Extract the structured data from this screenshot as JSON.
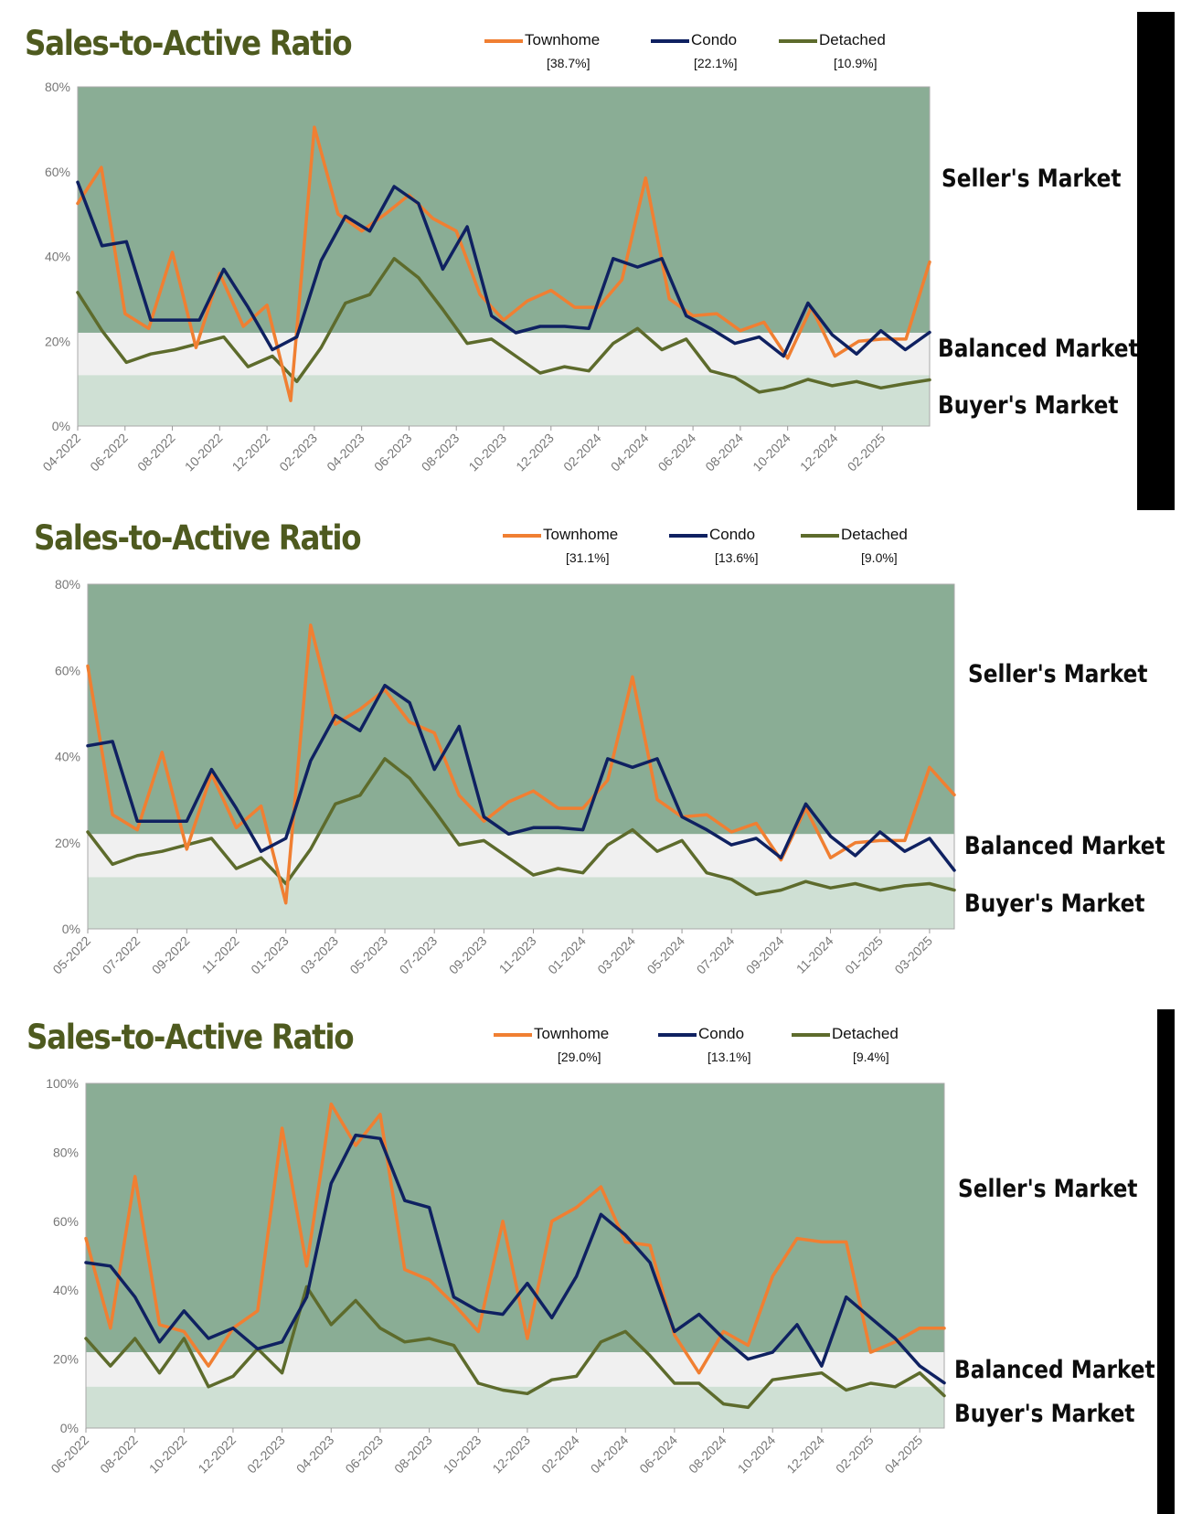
{
  "colors": {
    "townhome": "#f07f32",
    "condo": "#0f2161",
    "detached": "#5d6b2c",
    "sellers_zone": "#8aad95",
    "balanced_zone": "#f0f0f0",
    "buyers_zone": "#cfe0d4",
    "title": "#4e5a1f"
  },
  "zones": {
    "sellers": "Seller's Market",
    "balanced": "Balanced Market",
    "buyers": "Buyer's Market"
  },
  "legend_names": {
    "townhome": "Townhome",
    "condo": "Condo",
    "detached": "Detached"
  },
  "chart_data": [
    {
      "type": "line",
      "title": "Sales-to-Active Ratio",
      "ylim": [
        0,
        80
      ],
      "yticks": [
        "0%",
        "20%",
        "40%",
        "60%",
        "80%"
      ],
      "ytick_values": [
        0,
        20,
        40,
        60,
        80
      ],
      "zone_bounds": [
        12,
        22
      ],
      "xtick_labels": [
        "04-2022",
        "06-2022",
        "08-2022",
        "10-2022",
        "12-2022",
        "02-2023",
        "04-2023",
        "06-2023",
        "08-2023",
        "10-2023",
        "12-2023",
        "02-2024",
        "04-2024",
        "06-2024",
        "08-2024",
        "10-2024",
        "12-2024",
        "02-2025"
      ],
      "legend_values": [
        "[38.7%]",
        "[22.1%]",
        "[10.9%]"
      ],
      "series": [
        {
          "name": "Townhome",
          "key": "townhome",
          "values": [
            52.5,
            61,
            26.5,
            23,
            41,
            18.5,
            36,
            23.5,
            28.5,
            6,
            70.5,
            50,
            46,
            50,
            54.5,
            49,
            46,
            31,
            25,
            29.5,
            32,
            28,
            28,
            34.5,
            58.5,
            30,
            26,
            26.5,
            22.5,
            24.5,
            16,
            28,
            16.5,
            20,
            20.5,
            20.5,
            38.7
          ]
        },
        {
          "name": "Condo",
          "key": "condo",
          "values": [
            57.5,
            42.5,
            43.5,
            25,
            25,
            25,
            37,
            28,
            18,
            21,
            39,
            49.5,
            46,
            56.5,
            52.5,
            37,
            47,
            26,
            22,
            23.5,
            23.5,
            23,
            39.5,
            37.5,
            39.5,
            26,
            23,
            19.5,
            21,
            16.5,
            29,
            21.5,
            17,
            22.5,
            18,
            22.1
          ]
        },
        {
          "name": "Detached",
          "key": "detached",
          "values": [
            31.5,
            22.5,
            15,
            17,
            18,
            19.5,
            21,
            14,
            16.5,
            10.5,
            18.5,
            29,
            31,
            39.5,
            35,
            27.5,
            19.5,
            20.5,
            16.5,
            12.5,
            14,
            13,
            19.5,
            23,
            18,
            20.5,
            13,
            11.5,
            8,
            9,
            11,
            9.5,
            10.5,
            9,
            10,
            10.9
          ]
        }
      ]
    },
    {
      "type": "line",
      "title": "Sales-to-Active Ratio",
      "ylim": [
        0,
        80
      ],
      "yticks": [
        "0%",
        "20%",
        "40%",
        "60%",
        "80%"
      ],
      "ytick_values": [
        0,
        20,
        40,
        60,
        80
      ],
      "zone_bounds": [
        12,
        22
      ],
      "xtick_labels": [
        "05-2022",
        "07-2022",
        "09-2022",
        "11-2022",
        "01-2023",
        "03-2023",
        "05-2023",
        "07-2023",
        "09-2023",
        "11-2023",
        "01-2024",
        "03-2024",
        "05-2024",
        "07-2024",
        "09-2024",
        "11-2024",
        "01-2025",
        "03-2025"
      ],
      "legend_values": [
        "[31.1%]",
        "[13.6%]",
        "[9.0%]"
      ],
      "series": [
        {
          "name": "Townhome",
          "key": "townhome",
          "values": [
            61,
            26.5,
            23,
            41,
            18.5,
            36,
            23.5,
            28.5,
            6,
            70.5,
            47.5,
            51,
            55.5,
            48,
            45.5,
            31,
            25,
            29.5,
            32,
            28,
            28,
            34.5,
            58.5,
            30,
            26,
            26.5,
            22.5,
            24.5,
            16,
            28,
            16.5,
            20,
            20.5,
            20.5,
            37.5,
            31.1
          ]
        },
        {
          "name": "Condo",
          "key": "condo",
          "values": [
            42.5,
            43.5,
            25,
            25,
            25,
            37,
            28,
            18,
            21,
            39,
            49.5,
            46,
            56.5,
            52.5,
            37,
            47,
            26,
            22,
            23.5,
            23.5,
            23,
            39.5,
            37.5,
            39.5,
            26,
            23,
            19.5,
            21,
            16.5,
            29,
            21.5,
            17,
            22.5,
            18,
            21,
            13.6
          ]
        },
        {
          "name": "Detached",
          "key": "detached",
          "values": [
            22.5,
            15,
            17,
            18,
            19.5,
            21,
            14,
            16.5,
            10.5,
            18.5,
            29,
            31,
            39.5,
            35,
            27.5,
            19.5,
            20.5,
            16.5,
            12.5,
            14,
            13,
            19.5,
            23,
            18,
            20.5,
            13,
            11.5,
            8,
            9,
            11,
            9.5,
            10.5,
            9,
            10,
            10.5,
            9.0
          ]
        }
      ]
    },
    {
      "type": "line",
      "title": "Sales-to-Active Ratio",
      "ylim": [
        0,
        100
      ],
      "yticks": [
        "0%",
        "20%",
        "40%",
        "60%",
        "80%",
        "100%"
      ],
      "ytick_values": [
        0,
        20,
        40,
        60,
        80,
        100
      ],
      "zone_bounds": [
        12,
        22
      ],
      "xtick_labels": [
        "06-2022",
        "08-2022",
        "10-2022",
        "12-2022",
        "02-2023",
        "04-2023",
        "06-2023",
        "08-2023",
        "10-2023",
        "12-2023",
        "02-2024",
        "04-2024",
        "06-2024",
        "08-2024",
        "10-2024",
        "12-2024",
        "02-2025",
        "04-2025"
      ],
      "legend_values": [
        "[29.0%]",
        "[13.1%]",
        "[9.4%]"
      ],
      "series": [
        {
          "name": "Townhome",
          "key": "townhome",
          "values": [
            55,
            29,
            73,
            30,
            28,
            18,
            29,
            34,
            87,
            47,
            94,
            82,
            91,
            46,
            43,
            36,
            28,
            60,
            26,
            60,
            64,
            70,
            54,
            53,
            27,
            16,
            28,
            24,
            44,
            55,
            54,
            54,
            22,
            25,
            29,
            29.0
          ]
        },
        {
          "name": "Condo",
          "key": "condo",
          "values": [
            48,
            47,
            38,
            25,
            34,
            26,
            29,
            23,
            25,
            38,
            71,
            85,
            84,
            66,
            64,
            38,
            34,
            33,
            42,
            32,
            44,
            62,
            56,
            48,
            28,
            33,
            26,
            20,
            22,
            30,
            18,
            38,
            32,
            26,
            18,
            13.1
          ]
        },
        {
          "name": "Detached",
          "key": "detached",
          "values": [
            26,
            18,
            26,
            16,
            26,
            12,
            15,
            23,
            16,
            41,
            30,
            37,
            29,
            25,
            26,
            24,
            13,
            11,
            10,
            14,
            15,
            25,
            28,
            21,
            13,
            13,
            7,
            6,
            14,
            15,
            16,
            11,
            13,
            12,
            16,
            9.4
          ]
        }
      ]
    }
  ]
}
